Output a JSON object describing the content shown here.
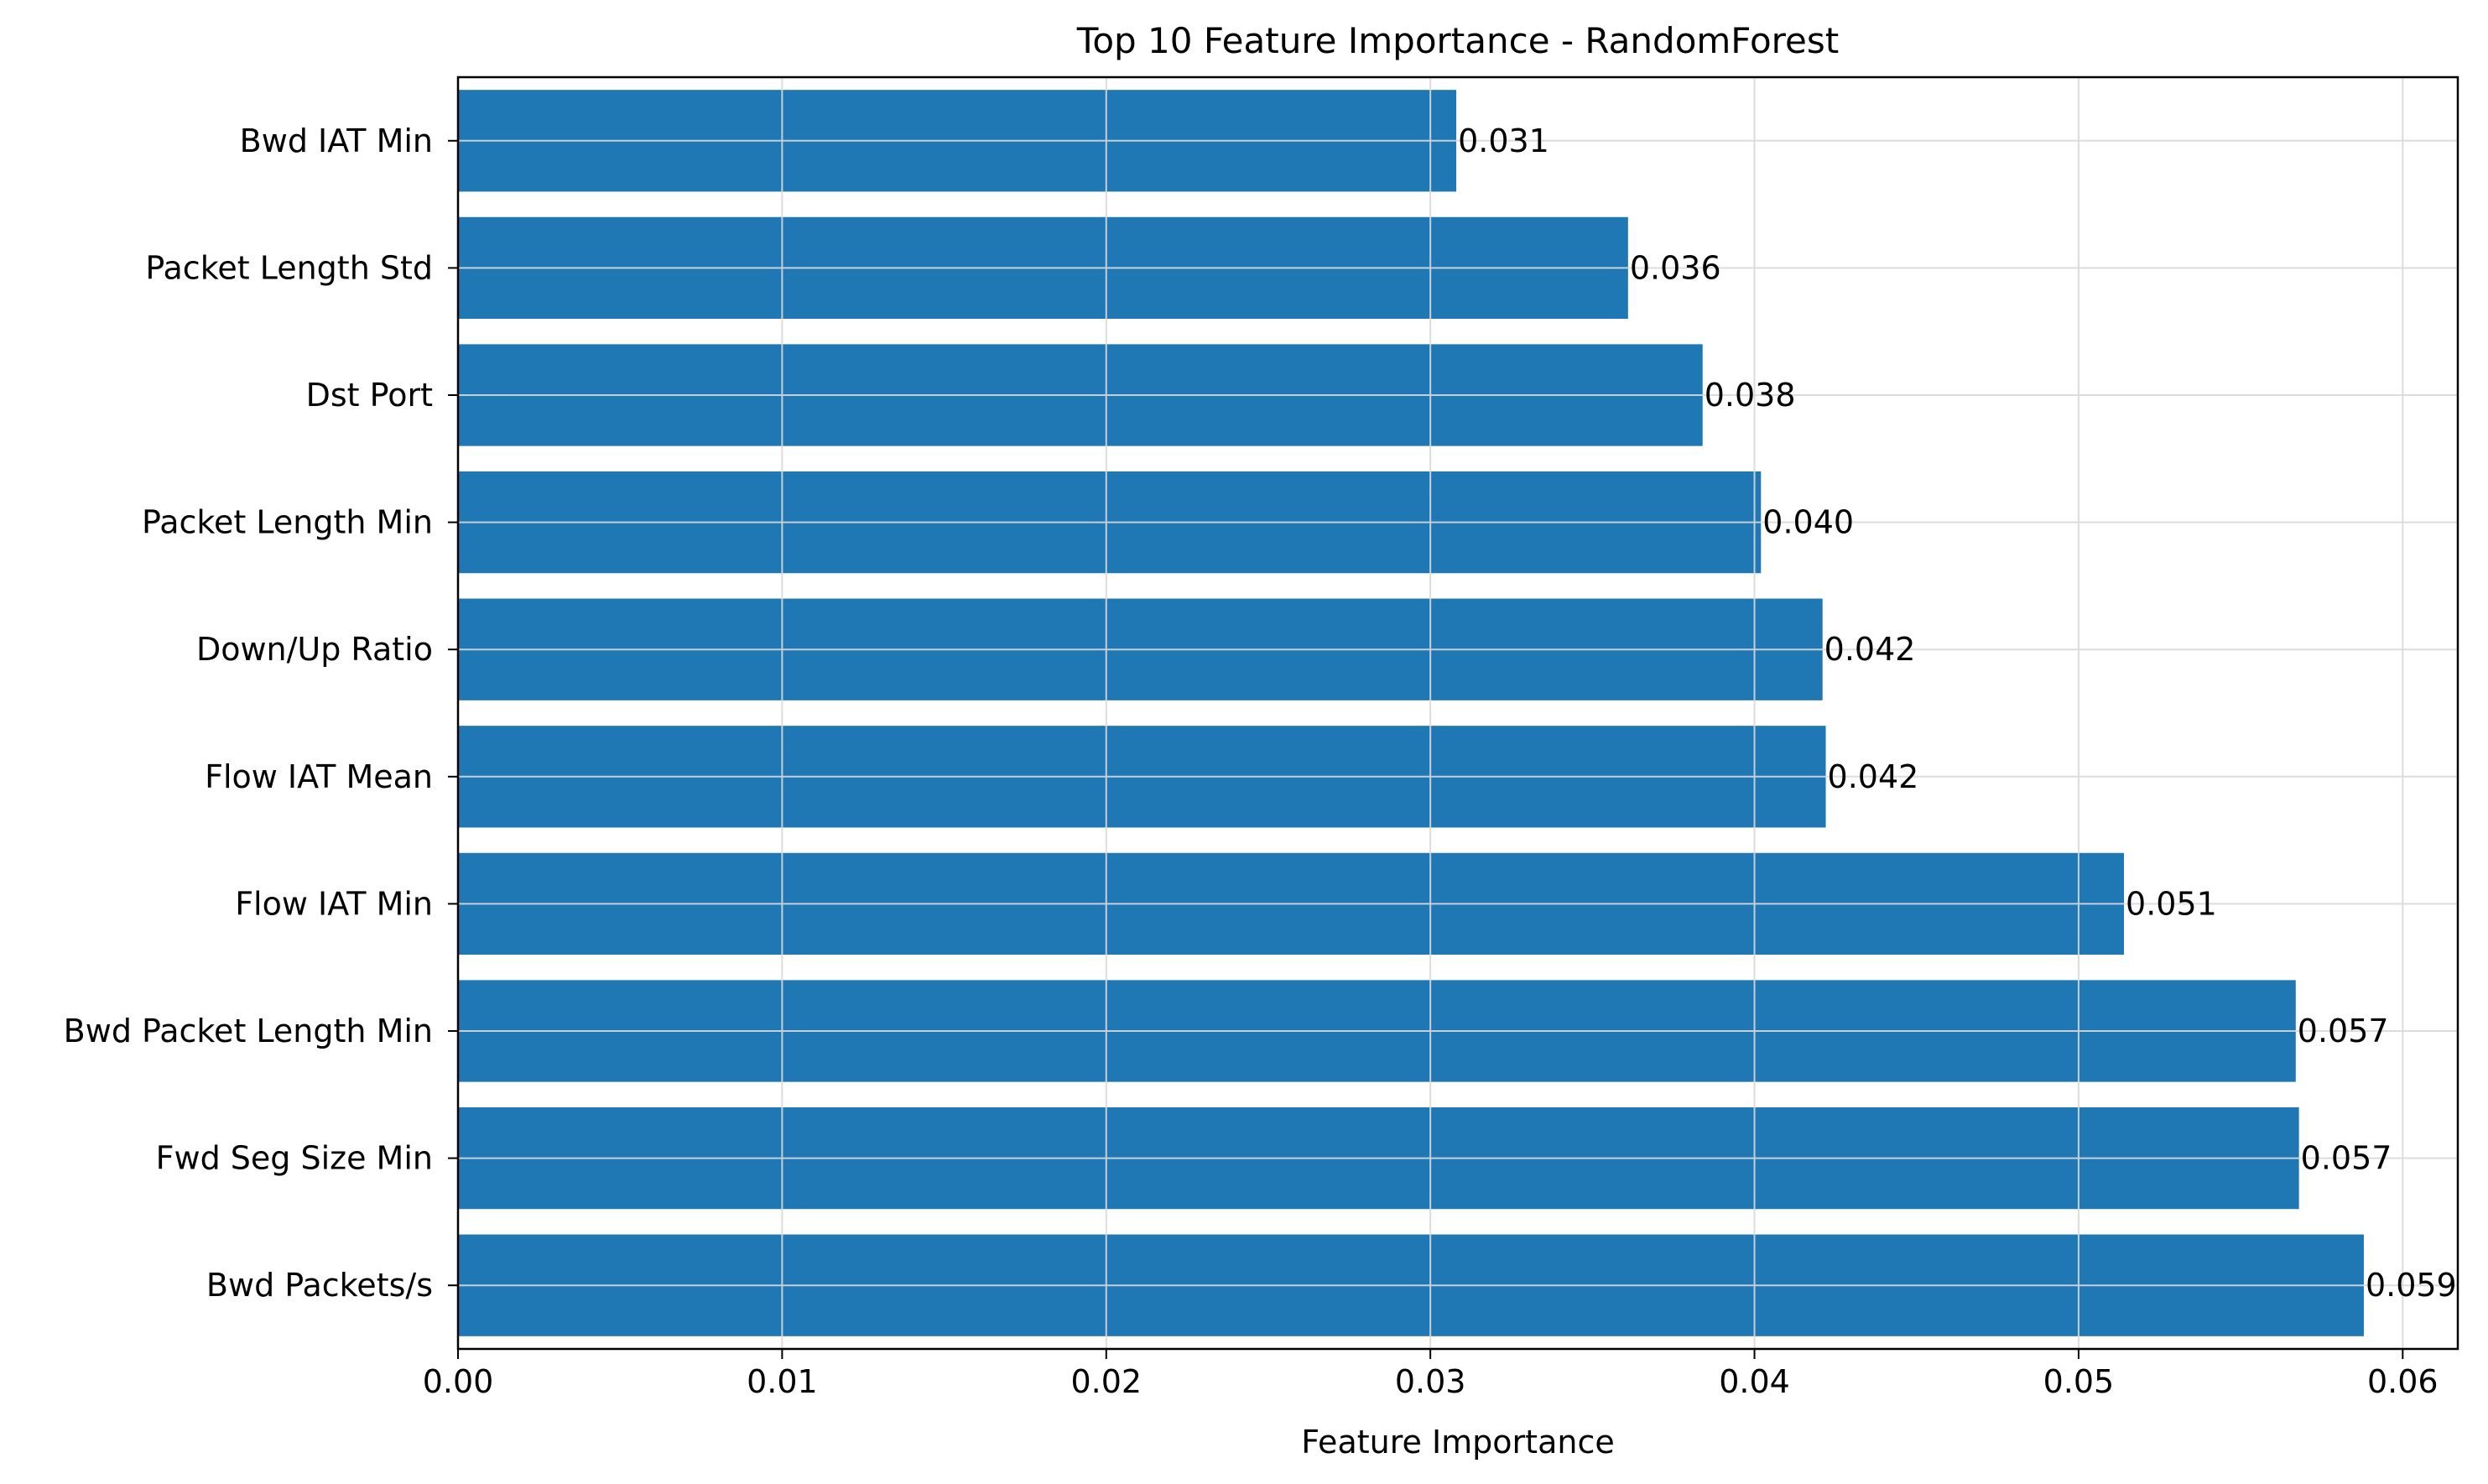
{
  "chart_data": {
    "type": "bar",
    "orientation": "horizontal",
    "title": "Top 10 Feature Importance - RandomForest",
    "xlabel": "Feature Importance",
    "ylabel": "",
    "xlim": [
      0,
      0.0617
    ],
    "x_ticks": [
      0.0,
      0.01,
      0.02,
      0.03,
      0.04,
      0.05,
      0.06
    ],
    "x_tick_labels": [
      "0.00",
      "0.01",
      "0.02",
      "0.03",
      "0.04",
      "0.05",
      "0.06"
    ],
    "grid": true,
    "categories": [
      "Bwd IAT Min",
      "Packet Length Std",
      "Dst Port",
      "Packet Length Min",
      "Down/Up Ratio",
      "Flow IAT Mean",
      "Flow IAT Min",
      "Bwd Packet Length Min",
      "Fwd Seg Size Min",
      "Bwd Packets/s"
    ],
    "values": [
      0.0308,
      0.0361,
      0.0384,
      0.0402,
      0.0421,
      0.0422,
      0.0514,
      0.0567,
      0.0568,
      0.0588
    ],
    "value_labels": [
      "0.031",
      "0.036",
      "0.038",
      "0.040",
      "0.042",
      "0.042",
      "0.051",
      "0.057",
      "0.057",
      "0.059"
    ],
    "colors": {
      "bar": "#1f77b4",
      "grid": "#d9d9d9",
      "axis": "#000000"
    }
  }
}
